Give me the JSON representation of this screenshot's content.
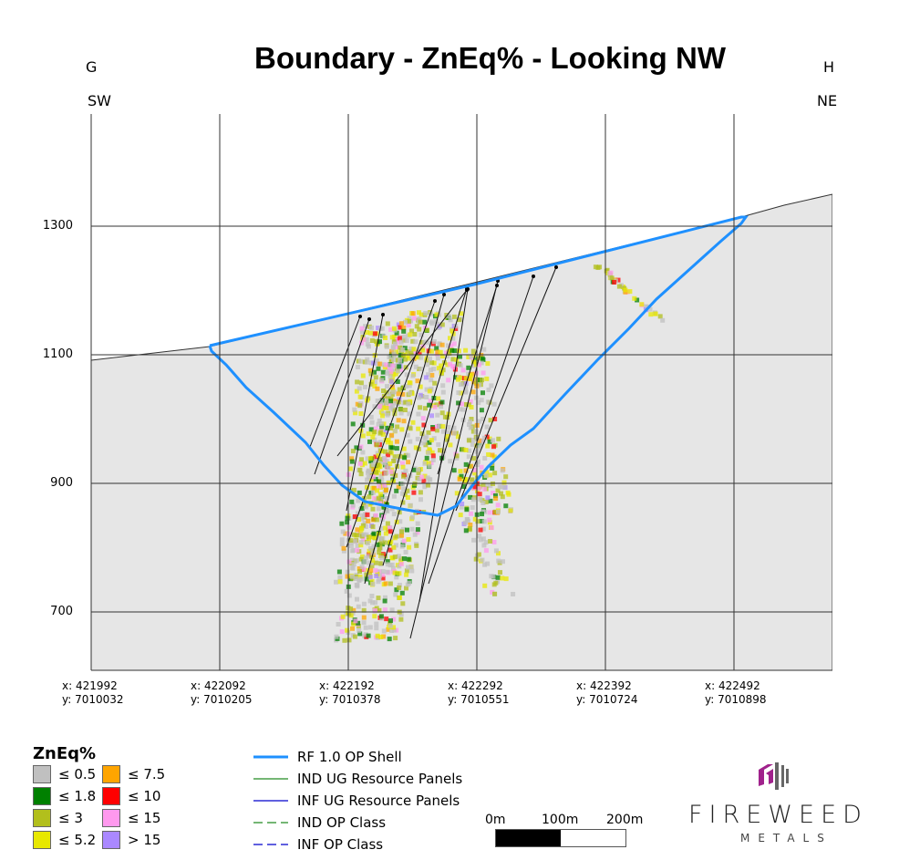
{
  "title": "Boundary - ZnEq% - Looking NW",
  "section_start": "G",
  "section_end": "H",
  "direction_left": "SW",
  "direction_right": "NE",
  "elevation_labels": [
    "1300",
    "1100",
    "900",
    "700"
  ],
  "easting_labels": [
    {
      "x": "x: 421992",
      "y": "y: 7010032"
    },
    {
      "x": "x: 422092",
      "y": "y: 7010205"
    },
    {
      "x": "x: 422192",
      "y": "y: 7010378"
    },
    {
      "x": "x: 422292",
      "y": "y: 7010551"
    },
    {
      "x": "x: 422392",
      "y": "y: 7010724"
    },
    {
      "x": "x: 422492",
      "y": "y: 7010898"
    }
  ],
  "grade_legend": {
    "title": "ZnEq%",
    "items": [
      {
        "label": "≤ 0.5",
        "color": "#c0c0c0"
      },
      {
        "label": "≤ 1.8",
        "color": "#008000"
      },
      {
        "label": "≤ 3",
        "color": "#b2bf1c"
      },
      {
        "label": "≤ 5.2",
        "color": "#e8e800"
      },
      {
        "label": "≤ 7.5",
        "color": "#ffa500"
      },
      {
        "label": "≤ 10",
        "color": "#ff0000"
      },
      {
        "label": "≤ 15",
        "color": "#ff99ee"
      },
      {
        "label": "> 15",
        "color": "#aa88ff"
      }
    ]
  },
  "line_legend": [
    {
      "label": "RF 1.0 OP Shell",
      "color": "#1e90ff",
      "style": "solid-thick"
    },
    {
      "label": "IND UG Resource Panels",
      "color": "#228b22",
      "style": "solid"
    },
    {
      "label": "INF UG Resource Panels",
      "color": "#0000cc",
      "style": "solid"
    },
    {
      "label": "IND OP Class",
      "color": "#228b22",
      "style": "dashed"
    },
    {
      "label": "INF OP Class",
      "color": "#0000cc",
      "style": "dashed"
    }
  ],
  "scale_bar": {
    "labels": [
      "0m",
      "100m",
      "200m"
    ]
  },
  "logo": {
    "name": "FIREWEED",
    "sub": "METALS"
  }
}
